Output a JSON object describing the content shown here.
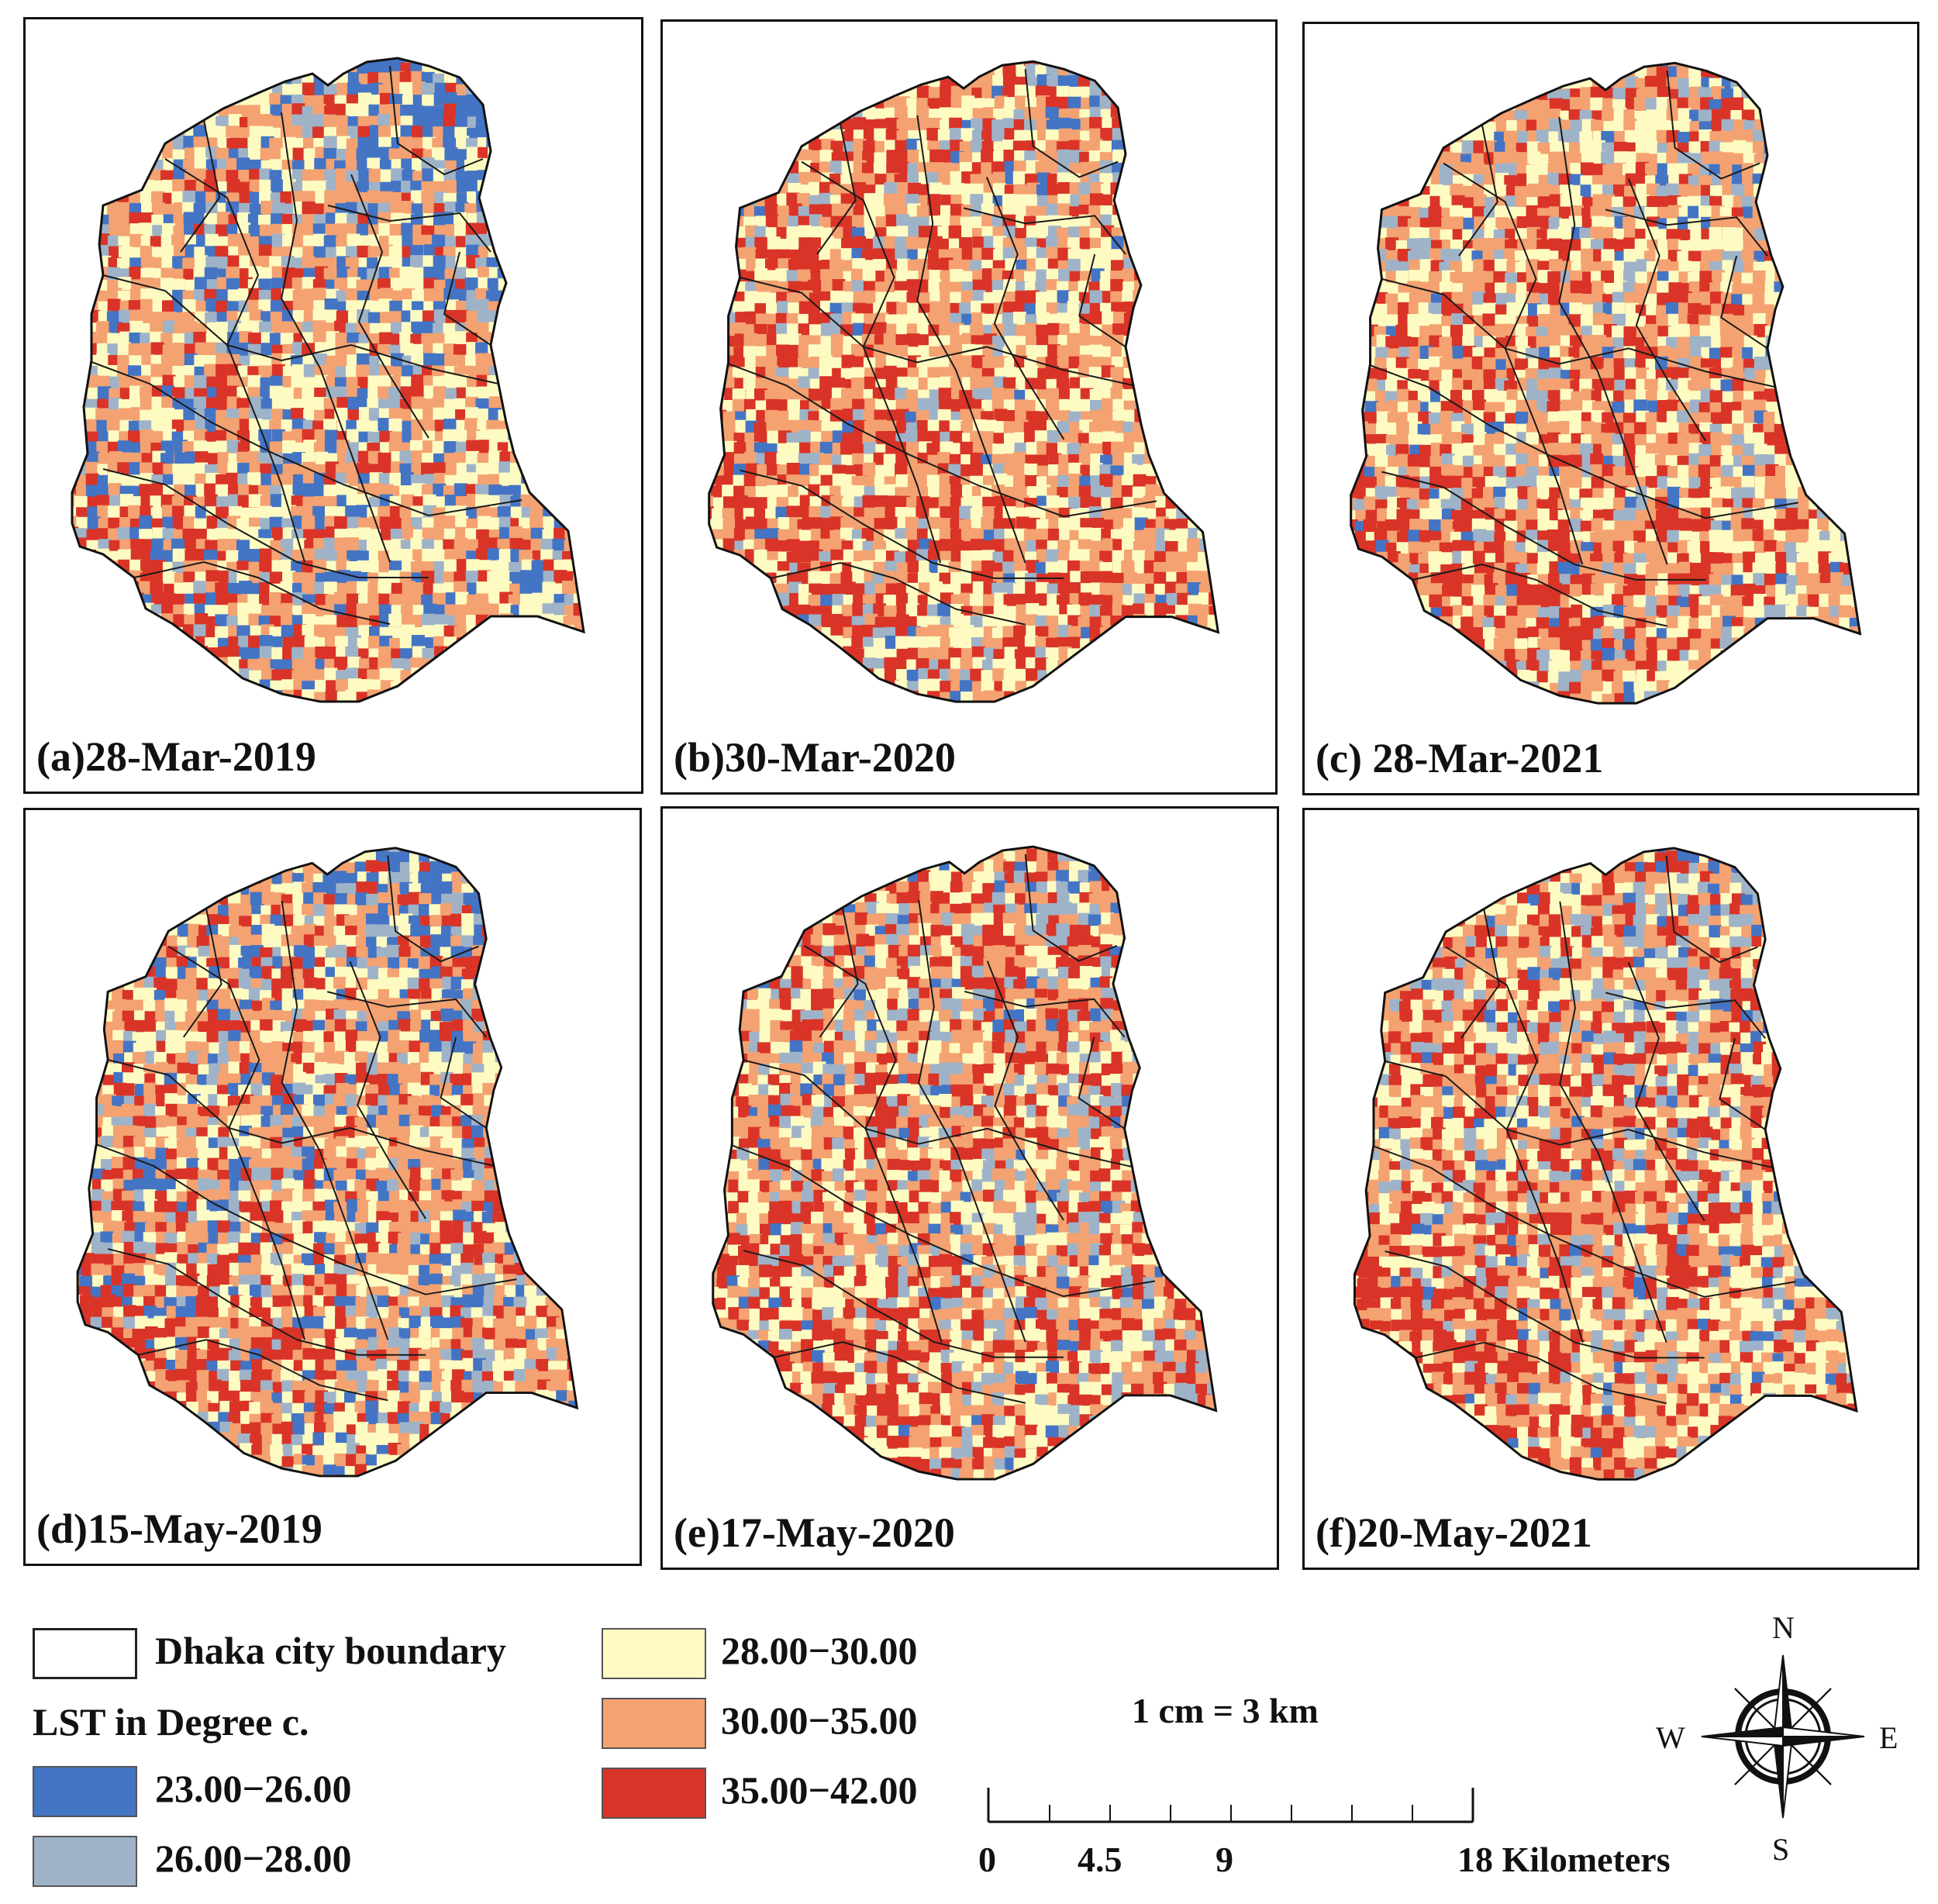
{
  "panels": [
    {
      "label": "(a)28-Mar-2019"
    },
    {
      "label": "(b)30-Mar-2020"
    },
    {
      "label": "(c) 28-Mar-2021"
    },
    {
      "label": "(d)15-May-2019"
    },
    {
      "label": "(e)17-May-2020"
    },
    {
      "label": "(f)20-May-2021"
    }
  ],
  "legend": {
    "boundary_label": "Dhaka city boundary",
    "title": "LST in Degree c.",
    "classes": [
      {
        "label": "23.00−26.00",
        "color": "#4474c4"
      },
      {
        "label": "26.00−28.00",
        "color": "#9fb3c8"
      },
      {
        "label": "28.00−30.00",
        "color": "#fdfbc2"
      },
      {
        "label": "30.00−35.00",
        "color": "#f4a271"
      },
      {
        "label": "35.00−42.00",
        "color": "#d93427"
      }
    ]
  },
  "scale": {
    "ratio": "1 cm = 3 km",
    "ticks": [
      "0",
      "4.5",
      "9",
      "18 Kilometers"
    ]
  },
  "north_arrow": {
    "n": "N",
    "s": "S",
    "e": "E",
    "w": "W"
  }
}
